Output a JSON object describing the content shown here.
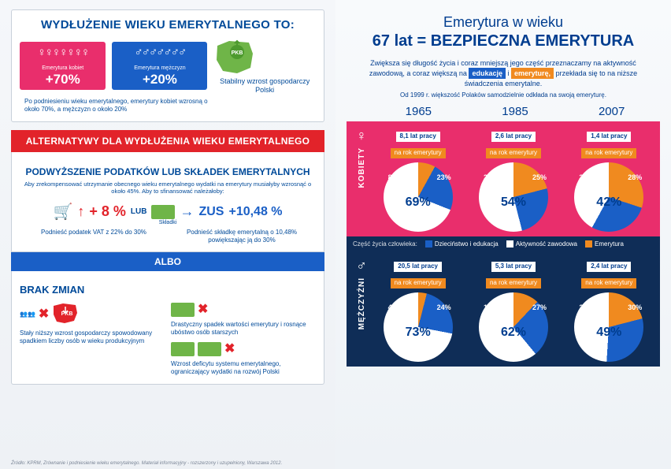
{
  "colors": {
    "pink": "#e92e6c",
    "blue": "#1a5fc6",
    "navy": "#0f2d57",
    "orange": "#f08a1f",
    "red": "#e2232a",
    "green": "#6fb548",
    "textblue": "#004a99"
  },
  "left": {
    "box1": {
      "title": "WYDŁUŻENIE WIEKU EMERYTALNEGO TO:",
      "women": {
        "label": "Emerytura kobiet",
        "pct": "+70%"
      },
      "men": {
        "label": "Emerytura mężczyzn",
        "pct": "+20%"
      },
      "caption": "Po podniesieniu wieku emerytalnego, emerytury kobiet wzrosną o około 70%, a mężczyzn o około 20%",
      "pkb": "PKB",
      "pkb_caption": "Stabilny wzrost gospodarczy Polski"
    },
    "redbar": "ALTERNATYWY DLA WYDŁUŻENIA WIEKU EMERYTALNEGO",
    "box2": {
      "title": "PODWYŻSZENIE PODATKÓW LUB SKŁADEK EMERYTALNYCH",
      "sub": "Aby zrekompensować utrzymanie obecnego wieku emerytalnego wydatki na emerytury musiałyby wzrosnąć o około 45%. Aby to sfinansować należałoby:",
      "vat_pct": "+ 8 %",
      "lub": "LUB",
      "skladki": "Składki",
      "zus": "ZUS",
      "zus_pct": "+10,48 %",
      "vat_caption": "Podnieść podatek VAT z 22% do 30%",
      "zus_caption": "Podnieść składkę emerytalną o 10,48% powiększając ją do 30%",
      "albo": "ALBO"
    },
    "box3": {
      "title": "BRAK ZMIAN",
      "left_caption": "Stały niższy wzrost gospodarczy spowodowany spadkiem liczby osób w wieku produkcyjnym",
      "r1": "Drastyczny spadek wartości emerytury i rosnące ubóstwo osób starszych",
      "r2": "Wzrost deficytu systemu emerytalnego, ograniczający wydatki na rozwój Polski"
    },
    "source": "Źródło: KPRM, Zrównanie i podniesienie wieku emerytalnego. Materiał informacyjny - rozszerzony i uzupełniony, Warszawa 2012."
  },
  "right": {
    "h1a": "Emerytura w wieku",
    "h1b": "67 lat = BEZPIECZNA EMERYTURA",
    "intro_pre": "Zwiększa się długość życia i coraz mniejszą jego część przeznaczamy na aktywność zawodową, a coraz większą na",
    "tag1": "edukację",
    "tag_i": "i",
    "tag2": "emeryturę,",
    "intro_post": "przekłada się to na niższe świadczenia emerytalne.",
    "intro2": "Od 1999 r. większość Polaków samodzielnie odkłada na swoją emeryturę.",
    "years": [
      "1965",
      "1985",
      "2007"
    ],
    "women": {
      "label": "KOBIETY",
      "cols": [
        {
          "badge_w": "8,1 lat pracy",
          "badge_o": "na rok emerytury",
          "blue": 23,
          "white": 69,
          "orange": 8
        },
        {
          "badge_w": "2,6 lat pracy",
          "badge_o": "na rok emerytury",
          "blue": 25,
          "white": 54,
          "orange": 21
        },
        {
          "badge_w": "1,4 lat pracy",
          "badge_o": "na rok emerytury",
          "blue": 28,
          "white": 42,
          "orange": 30
        }
      ]
    },
    "legend": {
      "t": "Część życia człowieka:",
      "a": "Dzieciństwo i edukacja",
      "b": "Aktywność zawodowa",
      "c": "Emerytura"
    },
    "men": {
      "label": "MĘŻCZYŹNI",
      "cols": [
        {
          "badge_w": "20,5 lat pracy",
          "badge_o": "na rok emerytury",
          "blue": 24,
          "white": 73,
          "orange": 4
        },
        {
          "badge_w": "5,3 lat pracy",
          "badge_o": "na rok emerytury",
          "blue": 27,
          "white": 62,
          "orange": 12
        },
        {
          "badge_w": "2,4 lat pracy",
          "badge_o": "na rok emerytury",
          "blue": 30,
          "white": 49,
          "orange": 21
        }
      ]
    }
  }
}
